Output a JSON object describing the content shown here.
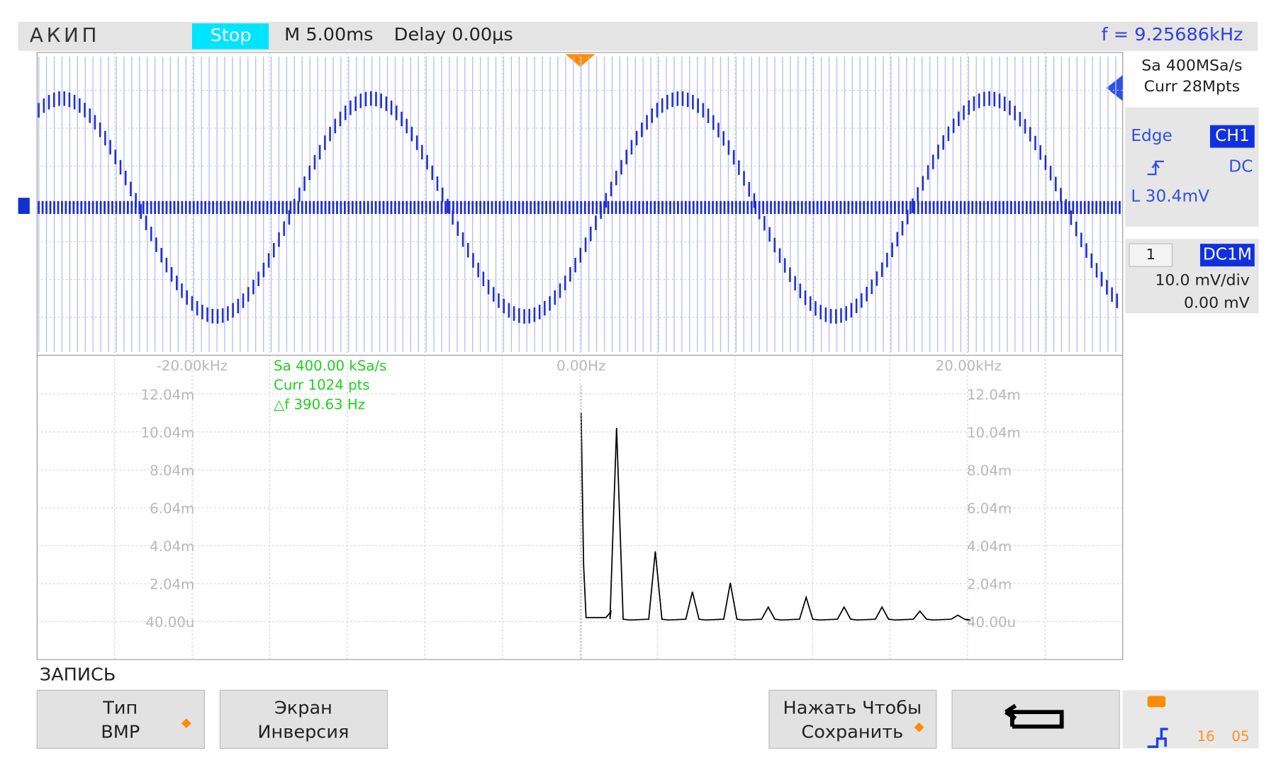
{
  "header": {
    "brand": "АКИП",
    "status": "Stop",
    "timebase": "M 5.00ms",
    "delay": "Delay 0.00µs",
    "frequency": "f = 9.25686kHz"
  },
  "acquisition": {
    "sample_rate": "Sa 400MSa/s",
    "memory": "Curr 28Mpts"
  },
  "trigger": {
    "type": "Edge",
    "source": "CH1",
    "coupling": "DC",
    "level": "L  30.4mV"
  },
  "channel": {
    "number": "1",
    "coupling": "DC1M",
    "scale": "10.0 mV/div",
    "offset": "0.00 mV"
  },
  "fft": {
    "x_labels": [
      "-20.00kHz",
      "0.00Hz",
      "20.00kHz"
    ],
    "info": [
      "Sa 400.00 kSa/s",
      "Curr 1024 pts",
      "△f 390.63 Hz"
    ],
    "y_labels": [
      "12.04m",
      "10.04m",
      "8.04m",
      "6.04m",
      "4.04m",
      "2.04m",
      "40.00u"
    ]
  },
  "menu": {
    "title": "ЗАПИСЬ",
    "buttons": [
      [
        "Тип",
        "BMP"
      ],
      [
        "Экран",
        "Инверсия"
      ],
      [
        "Нажать Чтобы",
        "Сохранить"
      ]
    ]
  },
  "status": {
    "time": [
      "16",
      "05"
    ]
  }
}
